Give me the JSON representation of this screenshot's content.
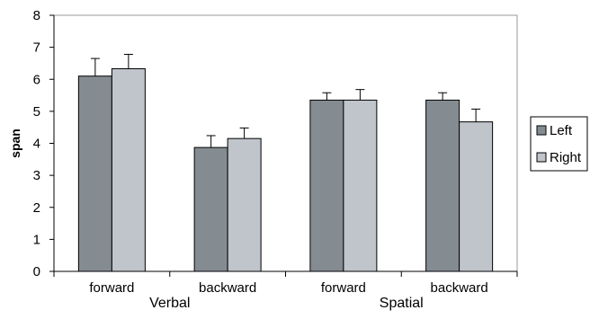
{
  "chart_data": {
    "type": "bar",
    "ylabel": "span",
    "ylim": [
      0,
      8
    ],
    "yticks": [
      0,
      1,
      2,
      3,
      4,
      5,
      6,
      7,
      8
    ],
    "categories": [
      "forward",
      "backward",
      "forward",
      "backward"
    ],
    "groups": [
      {
        "label": "Verbal",
        "categories": [
          0,
          1
        ]
      },
      {
        "label": "Spatial",
        "categories": [
          2,
          3
        ]
      }
    ],
    "series": [
      {
        "name": "Left",
        "color": "#848c92",
        "values": [
          6.1,
          3.87,
          5.35,
          5.35
        ],
        "error": [
          0.55,
          0.37,
          0.23,
          0.23
        ]
      },
      {
        "name": "Right",
        "color": "#c0c4cb",
        "values": [
          6.33,
          4.15,
          5.35,
          4.67
        ],
        "error": [
          0.45,
          0.33,
          0.33,
          0.4
        ]
      }
    ],
    "legend_position": "right",
    "grid": false
  }
}
